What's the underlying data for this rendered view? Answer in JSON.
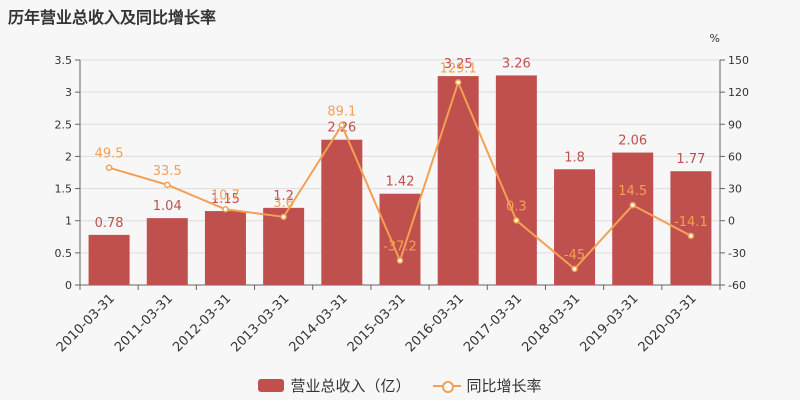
{
  "title": "历年营业总收入及同比增长率",
  "colors": {
    "bar": "#c0504d",
    "line": "#f4a054",
    "grid": "#dddddd",
    "axis": "#666666"
  },
  "chart_data": {
    "type": "bar",
    "categories": [
      "2010-03-31",
      "2011-03-31",
      "2012-03-31",
      "2013-03-31",
      "2014-03-31",
      "2015-03-31",
      "2016-03-31",
      "2017-03-31",
      "2018-03-31",
      "2019-03-31",
      "2020-03-31"
    ],
    "series": [
      {
        "name": "营业总收入（亿）",
        "type": "bar",
        "axis": "left",
        "values": [
          0.78,
          1.04,
          1.15,
          1.2,
          2.26,
          1.42,
          3.25,
          3.26,
          1.8,
          2.06,
          1.77
        ],
        "labels": [
          "0.78",
          "1.04",
          "1.15",
          "1.2",
          "2.26",
          "1.42",
          "3.25",
          "3.26",
          "1.8",
          "2.06",
          "1.77"
        ]
      },
      {
        "name": "同比增长率",
        "type": "line",
        "axis": "right",
        "values": [
          49.5,
          33.5,
          10.7,
          3.6,
          89.1,
          -37.2,
          129.1,
          0.3,
          -45,
          14.5,
          -14.1
        ],
        "labels": [
          "49.5",
          "33.5",
          "10.7",
          "3.6",
          "89.1",
          "-37.2",
          "129.1",
          "0.3",
          "-45",
          "14.5",
          "-14.1"
        ]
      }
    ],
    "y_left": {
      "min": 0,
      "max": 3.5,
      "ticks": [
        "0",
        "0.5",
        "1",
        "1.5",
        "2",
        "2.5",
        "3",
        "3.5"
      ]
    },
    "y_right": {
      "min": -60,
      "max": 150,
      "unit": "%",
      "ticks": [
        "-60",
        "-30",
        "0",
        "30",
        "60",
        "90",
        "120",
        "150"
      ]
    },
    "grid": true,
    "legend_position": "bottom"
  }
}
